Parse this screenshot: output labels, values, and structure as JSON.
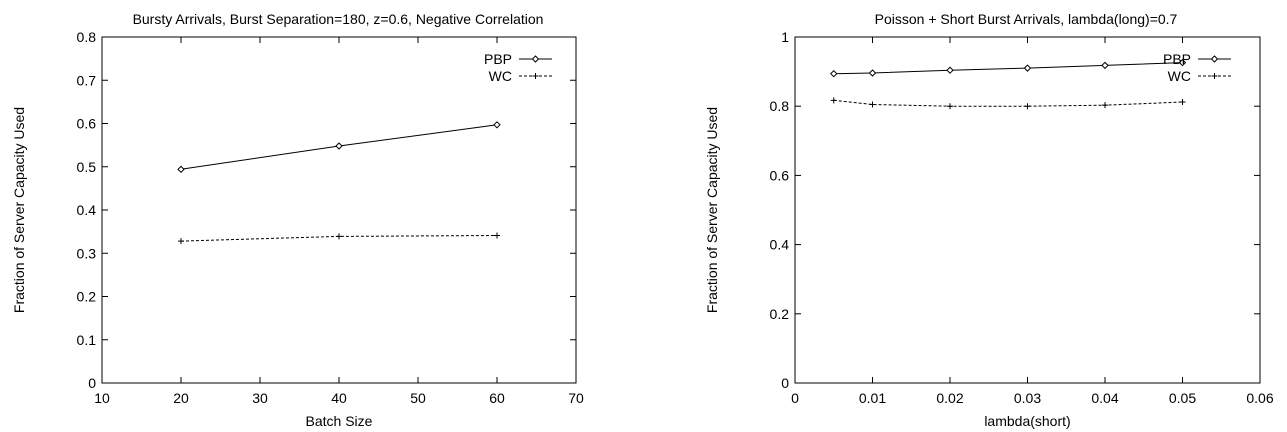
{
  "chart_data": [
    {
      "type": "line",
      "title": "Bursty Arrivals, Burst Separation=180, z=0.6, Negative Correlation",
      "xlabel": "Batch Size",
      "ylabel": "Fraction of Server Capacity Used",
      "xlim": [
        10,
        70
      ],
      "ylim": [
        0,
        0.8
      ],
      "xticks": [
        10,
        20,
        30,
        40,
        50,
        60,
        70
      ],
      "yticks": [
        0,
        0.1,
        0.2,
        0.3,
        0.4,
        0.5,
        0.6,
        0.7,
        0.8
      ],
      "x": [
        20,
        40,
        60
      ],
      "grid": false,
      "legend_position": "top-right",
      "series": [
        {
          "name": "PBP",
          "values": [
            0.494,
            0.548,
            0.597
          ],
          "style": "solid",
          "marker": "diamond"
        },
        {
          "name": "WC",
          "values": [
            0.328,
            0.339,
            0.341
          ],
          "style": "dashed",
          "marker": "plus"
        }
      ]
    },
    {
      "type": "line",
      "title": "Poisson + Short Burst Arrivals, lambda(long)=0.7",
      "xlabel": "lambda(short)",
      "ylabel": "Fraction of Server Capacity Used",
      "xlim": [
        0,
        0.06
      ],
      "ylim": [
        0,
        1
      ],
      "xticks": [
        0,
        0.01,
        0.02,
        0.03,
        0.04,
        0.05,
        0.06
      ],
      "yticks": [
        0,
        0.2,
        0.4,
        0.6,
        0.8,
        1
      ],
      "x": [
        0.005,
        0.01,
        0.02,
        0.03,
        0.04,
        0.05
      ],
      "grid": false,
      "legend_position": "top-right",
      "series": [
        {
          "name": "PBP",
          "values": [
            0.894,
            0.896,
            0.904,
            0.91,
            0.918,
            0.926
          ],
          "style": "solid",
          "marker": "diamond"
        },
        {
          "name": "WC",
          "values": [
            0.817,
            0.805,
            0.8,
            0.8,
            0.803,
            0.812
          ],
          "style": "dashed",
          "marker": "plus"
        }
      ]
    }
  ]
}
